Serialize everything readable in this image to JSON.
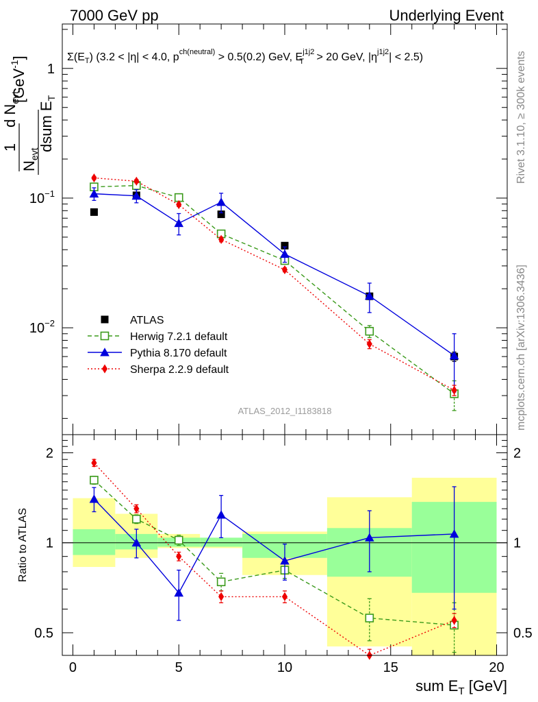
{
  "header": {
    "left": "7000 GeV pp",
    "right": "Underlying Event"
  },
  "annotation": {
    "sigma": "Σ(E",
    "sigma_sub": "T",
    "cond1": ") (3.2 < |η| < 4.0, p",
    "cond1_sup": "ch(neutral)",
    "cond2": " > 0.5(0.2) GeV, E",
    "cond2_sup": "j1j2",
    "cond2_sub": "T",
    "cond3": " > 20 GeV, |η",
    "cond3_sup": "j1j2",
    "cond4": "| < 2.5)"
  },
  "side_labels": {
    "rivet": "Rivet 3.1.10, ≥ 300k events",
    "mcplots": "mcplots.cern.ch [arXiv:1306.3436]"
  },
  "watermark": "ATLAS_2012_I1183818",
  "ylabel_main": {
    "one": "1",
    "n": "N",
    "evt": "evt",
    "dN": "d N",
    "dsum": "dsum E",
    "dsum_sub": "T",
    "unit": "[GeV",
    "unit_sup": "-1",
    "unit_close": "]"
  },
  "ylabel_ratio": "Ratio to ATLAS",
  "xlabel": {
    "text": "sum E",
    "sub": "T",
    "unit": " [GeV]"
  },
  "legend": [
    {
      "name": "ATLAS",
      "key": "atlas"
    },
    {
      "name": "Herwig 7.2.1 default",
      "key": "herwig"
    },
    {
      "name": "Pythia 8.170 default",
      "key": "pythia"
    },
    {
      "name": "Sherpa 2.2.9 default",
      "key": "sherpa"
    }
  ],
  "colors": {
    "atlas": "#000000",
    "herwig": "#3a9a1a",
    "pythia": "#0000dd",
    "sherpa": "#ee0000",
    "band_inner": "#99ff99",
    "band_outer": "#ffff99"
  },
  "chart_data": [
    {
      "type": "scatter",
      "panel": "main",
      "xlim": [
        -0.5,
        20.5
      ],
      "ylim": [
        0.0015,
        2.2
      ],
      "yscale": "log",
      "y_ticks": [
        {
          "value": 0.01,
          "base": "10",
          "exp": "−2"
        },
        {
          "value": 0.1,
          "base": "10",
          "exp": "−1"
        },
        {
          "value": 1,
          "base": "1",
          "exp": ""
        }
      ],
      "x_bins": [
        [
          0,
          2
        ],
        [
          2,
          4
        ],
        [
          4,
          6
        ],
        [
          6,
          8
        ],
        [
          8,
          12
        ],
        [
          12,
          16
        ],
        [
          16,
          20
        ]
      ],
      "series": [
        {
          "name": "ATLAS",
          "key": "atlas",
          "x": [
            1,
            3,
            5,
            7,
            10,
            14,
            18
          ],
          "y": [
            0.078,
            0.105,
            0.101,
            0.075,
            0.043,
            0.0175,
            0.006
          ],
          "yerr": [
            0.003,
            0.004,
            0.003,
            0.003,
            0.002,
            0.001,
            0.0005
          ]
        },
        {
          "name": "Herwig 7.2.1 default",
          "key": "herwig",
          "x": [
            1,
            3,
            5,
            7,
            10,
            14,
            18
          ],
          "y": [
            0.122,
            0.125,
            0.101,
            0.053,
            0.033,
            0.0094,
            0.0031
          ],
          "yerr": [
            0.005,
            0.005,
            0.004,
            0.003,
            0.002,
            0.001,
            0.0008
          ]
        },
        {
          "name": "Pythia 8.170 default",
          "key": "pythia",
          "x": [
            1,
            3,
            5,
            7,
            10,
            14,
            18
          ],
          "y": [
            0.108,
            0.104,
            0.064,
            0.093,
            0.037,
            0.0176,
            0.0061
          ],
          "yerr": [
            0.012,
            0.012,
            0.012,
            0.016,
            0.005,
            0.0045,
            0.0029
          ]
        },
        {
          "name": "Sherpa 2.2.9 default",
          "key": "sherpa",
          "x": [
            1,
            3,
            5,
            7,
            10,
            14,
            18
          ],
          "y": [
            0.143,
            0.135,
            0.089,
            0.048,
            0.028,
            0.0075,
            0.0033
          ],
          "yerr": [
            0.004,
            0.004,
            0.003,
            0.002,
            0.001,
            0.0006,
            0.0003
          ]
        }
      ]
    },
    {
      "type": "scatter",
      "panel": "ratio",
      "xlim": [
        -0.5,
        20.5
      ],
      "ylim": [
        0.42,
        2.3
      ],
      "yscale": "log",
      "y_ticks": [
        {
          "value": 0.5,
          "label": "0.5"
        },
        {
          "value": 1,
          "label": "1"
        },
        {
          "value": 2,
          "label": "2"
        }
      ],
      "x_ticks": [
        0,
        5,
        10,
        15,
        20
      ],
      "bands": [
        {
          "x0": 0,
          "x1": 2,
          "inner": [
            0.91,
            1.11
          ],
          "outer": [
            0.83,
            1.41
          ]
        },
        {
          "x0": 2,
          "x1": 4,
          "inner": [
            0.95,
            1.07
          ],
          "outer": [
            0.89,
            1.25
          ]
        },
        {
          "x0": 4,
          "x1": 6,
          "inner": [
            0.97,
            1.04
          ],
          "outer": [
            0.96,
            1.07
          ]
        },
        {
          "x0": 6,
          "x1": 8,
          "inner": [
            0.97,
            1.04
          ],
          "outer": [
            0.96,
            1.03
          ]
        },
        {
          "x0": 8,
          "x1": 12,
          "inner": [
            0.89,
            1.07
          ],
          "outer": [
            0.78,
            1.09
          ]
        },
        {
          "x0": 12,
          "x1": 16,
          "inner": [
            0.77,
            1.12
          ],
          "outer": [
            0.45,
            1.42
          ]
        },
        {
          "x0": 16,
          "x1": 20,
          "inner": [
            0.68,
            1.37
          ],
          "outer": [
            0.42,
            1.65
          ]
        }
      ],
      "series": [
        {
          "name": "Herwig 7.2.1 default",
          "key": "herwig",
          "x": [
            1,
            3,
            5,
            7,
            10,
            14,
            18
          ],
          "y": [
            1.62,
            1.2,
            1.02,
            0.74,
            0.81,
            0.56,
            0.53
          ],
          "yerr": [
            0.05,
            0.04,
            0.04,
            0.05,
            0.05,
            0.09,
            0.1
          ]
        },
        {
          "name": "Pythia 8.170 default",
          "key": "pythia",
          "x": [
            1,
            3,
            5,
            7,
            10,
            14,
            18
          ],
          "y": [
            1.4,
            1.0,
            0.68,
            1.24,
            0.87,
            1.04,
            1.07
          ],
          "yerr": [
            0.13,
            0.11,
            0.13,
            0.2,
            0.12,
            0.24,
            0.47
          ]
        },
        {
          "name": "Sherpa 2.2.9 default",
          "key": "sherpa",
          "x": [
            1,
            3,
            5,
            7,
            10,
            14,
            18
          ],
          "y": [
            1.85,
            1.3,
            0.9,
            0.66,
            0.66,
            0.42,
            0.55
          ],
          "yerr": [
            0.05,
            0.04,
            0.03,
            0.03,
            0.03,
            0.02,
            0.03
          ]
        }
      ]
    }
  ]
}
